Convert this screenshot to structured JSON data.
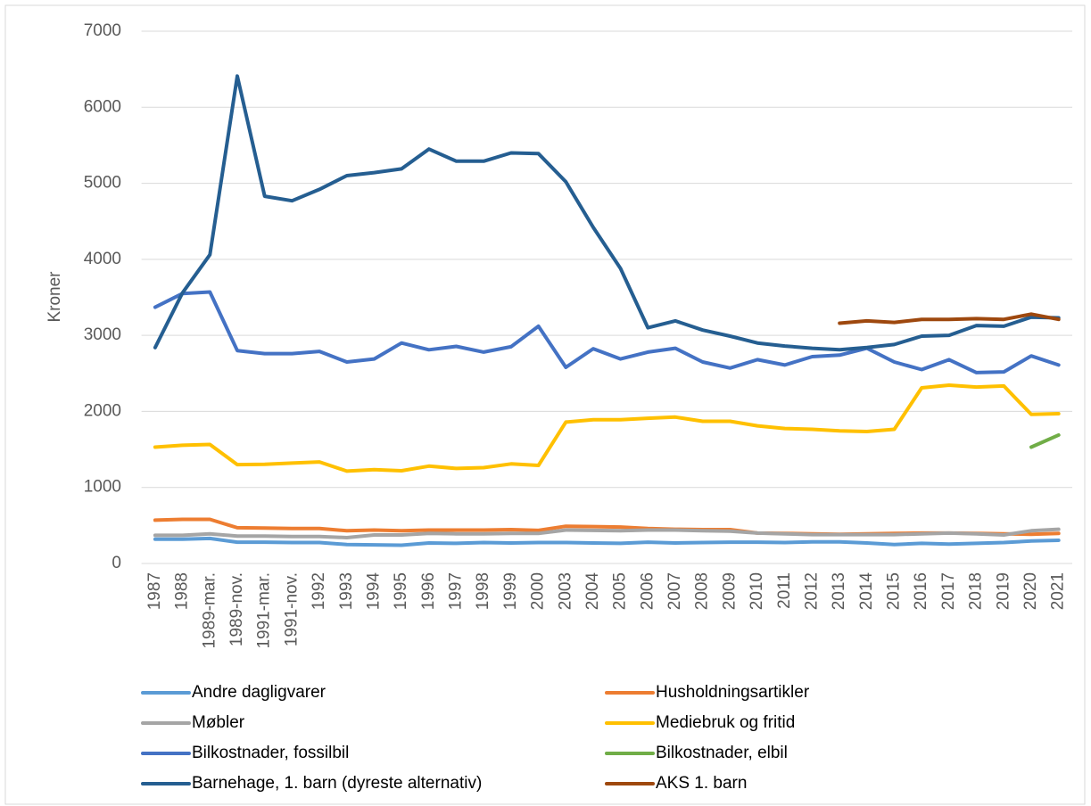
{
  "chart_data": {
    "type": "line",
    "y_label": "Kroner",
    "categories": [
      "1987",
      "1988",
      "1989-mar.",
      "1989-nov.",
      "1991-mar.",
      "1991-nov.",
      "1992",
      "1993",
      "1994",
      "1995",
      "1996",
      "1997",
      "1998",
      "1999",
      "2000",
      "2003",
      "2004",
      "2005",
      "2006",
      "2007",
      "2008",
      "2009",
      "2010",
      "2011",
      "2012",
      "2013",
      "2014",
      "2015",
      "2016",
      "2017",
      "2018",
      "2019",
      "2020",
      "2021"
    ],
    "ylim": [
      0,
      7000
    ],
    "yticks": [
      0,
      1000,
      2000,
      3000,
      4000,
      5000,
      6000,
      7000
    ],
    "grid": true,
    "legend": "bottom",
    "series": [
      {
        "name": "Andre dagligvarer",
        "color": "#5b9bd5",
        "values": [
          320,
          320,
          330,
          280,
          280,
          275,
          275,
          250,
          245,
          240,
          270,
          265,
          275,
          270,
          275,
          275,
          270,
          265,
          280,
          270,
          275,
          280,
          280,
          275,
          285,
          285,
          270,
          250,
          265,
          255,
          265,
          275,
          295,
          305
        ]
      },
      {
        "name": "Husholdningsartikler",
        "color": "#ed7d31",
        "values": [
          570,
          580,
          580,
          470,
          465,
          460,
          460,
          430,
          440,
          430,
          440,
          440,
          440,
          445,
          435,
          490,
          485,
          480,
          460,
          450,
          445,
          445,
          400,
          395,
          390,
          385,
          390,
          395,
          400,
          400,
          395,
          390,
          385,
          395
        ]
      },
      {
        "name": "Møbler",
        "color": "#a5a5a5",
        "values": [
          370,
          370,
          390,
          360,
          360,
          355,
          355,
          340,
          375,
          375,
          395,
          390,
          390,
          395,
          395,
          440,
          435,
          430,
          440,
          440,
          430,
          425,
          400,
          390,
          380,
          380,
          380,
          380,
          390,
          400,
          390,
          375,
          430,
          450
        ]
      },
      {
        "name": "Mediebruk og fritid",
        "color": "#ffc000",
        "values": [
          1530,
          1555,
          1565,
          1300,
          1305,
          1320,
          1335,
          1215,
          1235,
          1220,
          1280,
          1250,
          1260,
          1310,
          1290,
          1860,
          1890,
          1890,
          1910,
          1925,
          1870,
          1870,
          1810,
          1775,
          1765,
          1745,
          1735,
          1765,
          2310,
          2345,
          2320,
          2335,
          1960,
          1970
        ]
      },
      {
        "name": "Bilkostnader, fossilbil",
        "color": "#4472c4",
        "values": [
          3370,
          3550,
          3570,
          2800,
          2760,
          2760,
          2790,
          2650,
          2690,
          2900,
          2810,
          2855,
          2780,
          2850,
          3120,
          2580,
          2825,
          2690,
          2780,
          2830,
          2650,
          2570,
          2680,
          2610,
          2720,
          2740,
          2830,
          2650,
          2550,
          2680,
          2510,
          2520,
          2730,
          2610
        ]
      },
      {
        "name": "Bilkostnader, elbil",
        "color": "#70ad47",
        "values": [
          null,
          null,
          null,
          null,
          null,
          null,
          null,
          null,
          null,
          null,
          null,
          null,
          null,
          null,
          null,
          null,
          null,
          null,
          null,
          null,
          null,
          null,
          null,
          null,
          null,
          null,
          null,
          null,
          null,
          null,
          null,
          null,
          1530,
          1690
        ]
      },
      {
        "name": "Barnehage, 1. barn (dyreste alternativ)",
        "color": "#255e91",
        "values": [
          2840,
          3560,
          4060,
          6410,
          4830,
          4770,
          4920,
          5100,
          5140,
          5190,
          5450,
          5290,
          5290,
          5400,
          5390,
          5020,
          4420,
          3880,
          3100,
          3190,
          3070,
          2990,
          2900,
          2860,
          2830,
          2810,
          2840,
          2880,
          2990,
          3000,
          3130,
          3120,
          3240,
          3230
        ]
      },
      {
        "name": "AKS 1. barn",
        "color": "#9e480e",
        "values": [
          null,
          null,
          null,
          null,
          null,
          null,
          null,
          null,
          null,
          null,
          null,
          null,
          null,
          null,
          null,
          null,
          null,
          null,
          null,
          null,
          null,
          null,
          null,
          null,
          null,
          3160,
          3190,
          3170,
          3210,
          3210,
          3220,
          3210,
          3280,
          3210
        ]
      }
    ]
  }
}
